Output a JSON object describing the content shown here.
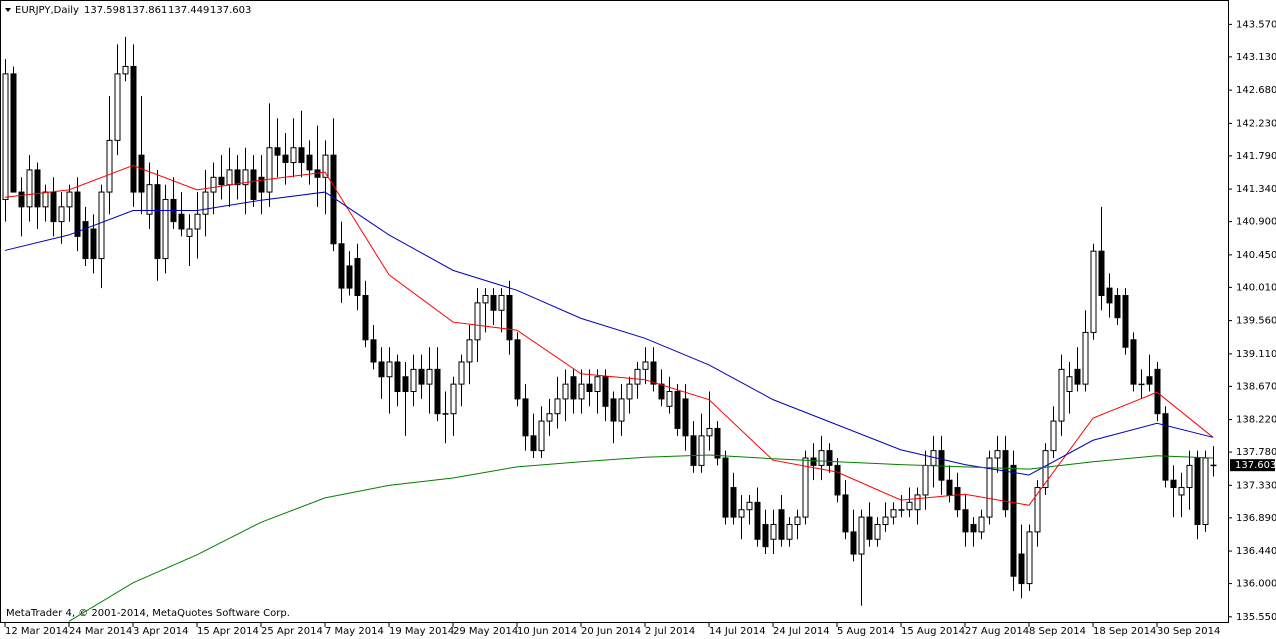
{
  "chart_data": {
    "type": "candlestick",
    "title": "EURJPY,Daily",
    "footer": "MetaTrader 4, © 2001-2014, MetaQuotes Software Corp.",
    "categories": [
      "12 Mar 2014",
      null,
      null,
      null,
      null,
      null,
      null,
      null,
      "24 Mar 2014",
      null,
      null,
      null,
      null,
      null,
      null,
      null,
      "3 Apr 2014",
      null,
      null,
      null,
      null,
      null,
      null,
      null,
      "15 Apr 2014",
      null,
      null,
      null,
      null,
      null,
      null,
      null,
      "25 Apr 2014",
      null,
      null,
      null,
      null,
      null,
      null,
      null,
      "7 May 2014",
      null,
      null,
      null,
      null,
      null,
      null,
      null,
      "19 May 2014",
      null,
      null,
      null,
      null,
      null,
      null,
      null,
      "29 May 2014",
      null,
      null,
      null,
      null,
      null,
      null,
      null,
      "10 Jun 2014",
      null,
      null,
      null,
      null,
      null,
      null,
      null,
      "20 Jun 2014",
      null,
      null,
      null,
      null,
      null,
      null,
      null,
      "2 Jul 2014",
      null,
      null,
      null,
      null,
      null,
      null,
      null,
      "14 Jul 2014",
      null,
      null,
      null,
      null,
      null,
      null,
      null,
      "24 Jul 2014",
      null,
      null,
      null,
      null,
      null,
      null,
      null,
      "5 Aug 2014",
      null,
      null,
      null,
      null,
      null,
      null,
      null,
      "15 Aug 2014",
      null,
      null,
      null,
      null,
      null,
      null,
      null,
      "27 Aug 2014",
      null,
      null,
      null,
      null,
      null,
      null,
      null,
      "8 Sep 2014",
      null,
      null,
      null,
      null,
      null,
      null,
      null,
      "18 Sep 2014",
      null,
      null,
      null,
      null,
      null,
      null,
      null,
      "30 Sep 2014",
      null,
      null,
      null,
      null,
      null,
      null,
      null
    ],
    "open": [
      141.2,
      142.9,
      141.3,
      141.1,
      141.6,
      141.1,
      141.3,
      140.9,
      141.1,
      141.3,
      140.9,
      140.8,
      140.4,
      141.3,
      142.0,
      142.9,
      143.0,
      141.8,
      141.0,
      141.4,
      140.4,
      141.2,
      141.0,
      140.7,
      140.8,
      141.0,
      141.3,
      141.5,
      141.4,
      141.6,
      141.4,
      141.6,
      141.5,
      141.3,
      141.9,
      141.8,
      141.7,
      141.9,
      141.8,
      141.6,
      141.5,
      141.8,
      140.6,
      140.3,
      140.4,
      139.9,
      139.3,
      139.0,
      138.8,
      139.0,
      138.8,
      138.6,
      138.9,
      138.7,
      138.9,
      138.3,
      138.3,
      138.7,
      139.0,
      139.3,
      139.8,
      139.9,
      139.7,
      139.9,
      139.3,
      138.5,
      138.0,
      137.8,
      138.2,
      138.3,
      138.5,
      138.8,
      138.5,
      138.7,
      138.6,
      138.8,
      138.5,
      138.2,
      138.5,
      138.7,
      138.9,
      139.0,
      138.7,
      138.4,
      138.6,
      138.5,
      138.0,
      137.6,
      138.0,
      138.1,
      137.7,
      137.3,
      136.9,
      137.0,
      137.1,
      136.8,
      136.6,
      137.0,
      136.6,
      136.8,
      136.9,
      137.7,
      137.6,
      137.8,
      137.6,
      137.2,
      136.7,
      136.4,
      136.9,
      136.6,
      136.8,
      136.9,
      137.0,
      137.0,
      137.0,
      137.2,
      137.6,
      137.8,
      137.4,
      137.3,
      137.0,
      136.8,
      136.7,
      136.9,
      137.7,
      137.8,
      137.6,
      136.4,
      136.0,
      136.7,
      137.3,
      137.8,
      138.2,
      138.6,
      138.9,
      138.7,
      139.4,
      140.5,
      140.0,
      139.9,
      139.9,
      139.3,
      138.7,
      138.8,
      138.9,
      138.3,
      137.4,
      137.2,
      137.3,
      137.7,
      136.8,
      137.598
    ],
    "high": [
      143.1,
      143.0,
      141.5,
      141.8,
      141.7,
      141.4,
      141.5,
      141.3,
      141.4,
      141.5,
      141.1,
      141.0,
      141.4,
      142.6,
      143.3,
      143.4,
      143.3,
      142.6,
      141.7,
      141.6,
      141.4,
      141.5,
      141.3,
      141.0,
      141.3,
      141.6,
      141.7,
      141.8,
      141.9,
      141.8,
      141.9,
      141.8,
      141.8,
      142.5,
      142.3,
      142.1,
      142.3,
      142.4,
      142.0,
      142.2,
      142.0,
      142.3,
      140.9,
      140.5,
      140.6,
      140.1,
      139.5,
      139.2,
      139.2,
      139.1,
      139.0,
      139.1,
      139.1,
      139.2,
      139.2,
      138.6,
      138.8,
      139.1,
      139.5,
      140.0,
      140.0,
      140.0,
      140.0,
      140.1,
      139.4,
      138.7,
      138.3,
      138.4,
      138.5,
      138.8,
      138.9,
      138.9,
      138.9,
      138.9,
      138.9,
      138.9,
      138.6,
      138.7,
      138.8,
      139.0,
      139.2,
      139.2,
      138.9,
      138.8,
      138.7,
      138.7,
      138.2,
      138.3,
      138.6,
      138.2,
      137.8,
      137.5,
      137.2,
      137.2,
      137.3,
      137.0,
      137.0,
      137.2,
      136.9,
      137.0,
      137.8,
      137.9,
      138.0,
      137.9,
      137.7,
      137.4,
      137.0,
      137.0,
      137.1,
      136.9,
      137.1,
      137.1,
      137.2,
      137.3,
      137.3,
      137.8,
      138.0,
      138.0,
      137.6,
      137.5,
      137.2,
      136.9,
      137.0,
      137.8,
      138.0,
      138.0,
      137.8,
      136.8,
      136.8,
      137.4,
      137.9,
      138.4,
      139.1,
      139.0,
      139.2,
      139.7,
      140.6,
      141.1,
      140.2,
      140.0,
      140.0,
      139.4,
      138.9,
      139.1,
      139.0,
      138.4,
      137.6,
      137.5,
      137.8,
      137.8,
      137.8,
      137.861
    ],
    "low": [
      140.9,
      141.3,
      140.7,
      140.9,
      140.8,
      140.9,
      140.7,
      140.6,
      140.9,
      140.5,
      140.3,
      140.2,
      140.0,
      141.0,
      141.8,
      142.8,
      141.1,
      141.0,
      140.8,
      140.1,
      140.2,
      140.8,
      140.7,
      140.3,
      140.4,
      140.7,
      141.0,
      141.2,
      141.1,
      141.2,
      141.0,
      141.1,
      141.0,
      141.1,
      141.5,
      141.4,
      141.5,
      141.5,
      141.4,
      141.1,
      141.0,
      140.5,
      139.8,
      139.9,
      139.7,
      139.2,
      138.9,
      138.5,
      138.3,
      138.4,
      138.0,
      138.4,
      138.5,
      138.3,
      138.2,
      137.9,
      138.0,
      138.4,
      138.7,
      139.0,
      139.4,
      139.5,
      139.4,
      139.1,
      138.4,
      137.8,
      137.7,
      137.7,
      138.0,
      138.1,
      138.2,
      138.3,
      138.3,
      138.4,
      138.3,
      138.2,
      137.9,
      138.0,
      138.3,
      138.5,
      138.7,
      138.6,
      138.4,
      138.3,
      138.0,
      137.8,
      137.5,
      137.5,
      137.8,
      137.6,
      136.8,
      136.8,
      136.6,
      136.8,
      136.5,
      136.4,
      136.4,
      136.5,
      136.5,
      136.6,
      136.8,
      137.4,
      137.4,
      137.5,
      137.1,
      136.6,
      136.3,
      135.7,
      136.5,
      136.5,
      136.7,
      136.8,
      136.9,
      136.9,
      136.8,
      137.0,
      137.3,
      137.2,
      137.1,
      136.9,
      136.5,
      136.5,
      136.6,
      136.8,
      137.5,
      136.9,
      135.9,
      135.8,
      135.9,
      136.5,
      137.2,
      137.7,
      138.0,
      138.3,
      138.6,
      138.6,
      139.3,
      139.7,
      139.6,
      139.5,
      139.1,
      138.6,
      138.5,
      138.6,
      138.2,
      137.3,
      136.9,
      136.9,
      137.0,
      136.6,
      136.7,
      137.449
    ],
    "close": [
      142.9,
      141.3,
      141.1,
      141.6,
      141.1,
      141.3,
      140.9,
      141.1,
      141.3,
      140.7,
      140.4,
      140.4,
      141.3,
      142.0,
      142.9,
      143.0,
      141.3,
      141.3,
      141.4,
      140.4,
      141.2,
      140.9,
      140.8,
      140.8,
      141.0,
      141.3,
      141.5,
      141.4,
      141.6,
      141.4,
      141.6,
      141.2,
      141.3,
      141.9,
      141.8,
      141.7,
      141.9,
      141.7,
      141.6,
      141.5,
      141.8,
      140.6,
      140.0,
      140.0,
      139.9,
      139.3,
      139.0,
      138.8,
      139.0,
      138.6,
      138.6,
      138.9,
      138.7,
      138.9,
      138.3,
      138.3,
      138.7,
      139.0,
      139.3,
      139.8,
      139.9,
      139.7,
      139.9,
      139.3,
      138.5,
      138.0,
      137.8,
      138.2,
      138.3,
      138.5,
      138.7,
      138.5,
      138.7,
      138.6,
      138.8,
      138.4,
      138.2,
      138.5,
      138.7,
      138.9,
      139.0,
      138.7,
      138.5,
      138.6,
      138.1,
      138.0,
      137.6,
      138.0,
      138.1,
      137.7,
      136.9,
      136.9,
      137.0,
      137.1,
      136.6,
      136.5,
      136.8,
      136.6,
      136.8,
      136.9,
      137.7,
      137.6,
      137.8,
      137.6,
      137.2,
      136.7,
      136.4,
      136.9,
      136.6,
      136.8,
      136.9,
      137.0,
      137.0,
      137.1,
      137.2,
      137.6,
      137.8,
      137.4,
      137.2,
      137.0,
      136.7,
      136.7,
      136.9,
      137.7,
      137.8,
      137.0,
      136.1,
      136.0,
      136.7,
      137.3,
      137.8,
      138.2,
      138.9,
      138.8,
      138.7,
      139.4,
      140.5,
      139.9,
      139.8,
      139.6,
      139.2,
      138.7,
      138.7,
      138.7,
      138.3,
      137.4,
      137.3,
      137.3,
      137.6,
      136.8,
      137.7,
      137.603
    ],
    "lines": [
      {
        "color": "#ff0000",
        "x": [
          0,
          8,
          16,
          24,
          32,
          40,
          48,
          56,
          64,
          72,
          80,
          88,
          96,
          104,
          112,
          120,
          128,
          136,
          144,
          151
        ],
        "values": [
          141.23,
          141.33,
          141.66,
          141.33,
          141.46,
          141.57,
          140.18,
          139.54,
          139.43,
          138.84,
          138.76,
          138.49,
          137.67,
          137.51,
          137.13,
          137.21,
          137.06,
          138.24,
          138.59,
          137.98
        ]
      },
      {
        "color": "#0000c0",
        "x": [
          0,
          8,
          16,
          24,
          32,
          40,
          48,
          56,
          64,
          72,
          80,
          88,
          96,
          104,
          112,
          120,
          128,
          136,
          144,
          151
        ],
        "values": [
          140.51,
          140.72,
          141.05,
          141.05,
          141.19,
          141.3,
          140.72,
          140.24,
          139.97,
          139.59,
          139.32,
          138.96,
          138.49,
          138.15,
          137.81,
          137.61,
          137.47,
          137.94,
          138.17,
          137.98
        ]
      },
      {
        "color": "#008000",
        "x": [
          8,
          16,
          24,
          32,
          40,
          48,
          56,
          64,
          72,
          80,
          88,
          96,
          104,
          112,
          120,
          128,
          136,
          144,
          151
        ],
        "values": [
          135.49,
          136.01,
          136.39,
          136.83,
          137.16,
          137.33,
          137.43,
          137.58,
          137.65,
          137.71,
          137.74,
          137.69,
          137.65,
          137.61,
          137.58,
          137.55,
          137.65,
          137.73,
          137.7
        ]
      }
    ],
    "ylim": [
      135.48,
      143.9
    ],
    "yticks": [
      {
        "value": 135.55,
        "label": "135.550"
      },
      {
        "value": 136.0,
        "label": "136.000"
      },
      {
        "value": 136.44,
        "label": "136.440"
      },
      {
        "value": 136.89,
        "label": "136.890"
      },
      {
        "value": 137.33,
        "label": "137.330"
      },
      {
        "value": 137.78,
        "label": "137.780"
      },
      {
        "value": 138.22,
        "label": "138.220"
      },
      {
        "value": 138.67,
        "label": "138.670"
      },
      {
        "value": 139.11,
        "label": "139.110"
      },
      {
        "value": 139.56,
        "label": "139.560"
      },
      {
        "value": 140.01,
        "label": "140.010"
      },
      {
        "value": 140.45,
        "label": "140.450"
      },
      {
        "value": 140.9,
        "label": "140.900"
      },
      {
        "value": 141.34,
        "label": "141.340"
      },
      {
        "value": 141.79,
        "label": "141.790"
      },
      {
        "value": 142.23,
        "label": "142.230"
      },
      {
        "value": 142.68,
        "label": "142.680"
      },
      {
        "value": 143.13,
        "label": "143.130"
      },
      {
        "value": 143.57,
        "label": "143.570"
      }
    ],
    "up_color": "#ffffff",
    "down_color": "#000000"
  }
}
